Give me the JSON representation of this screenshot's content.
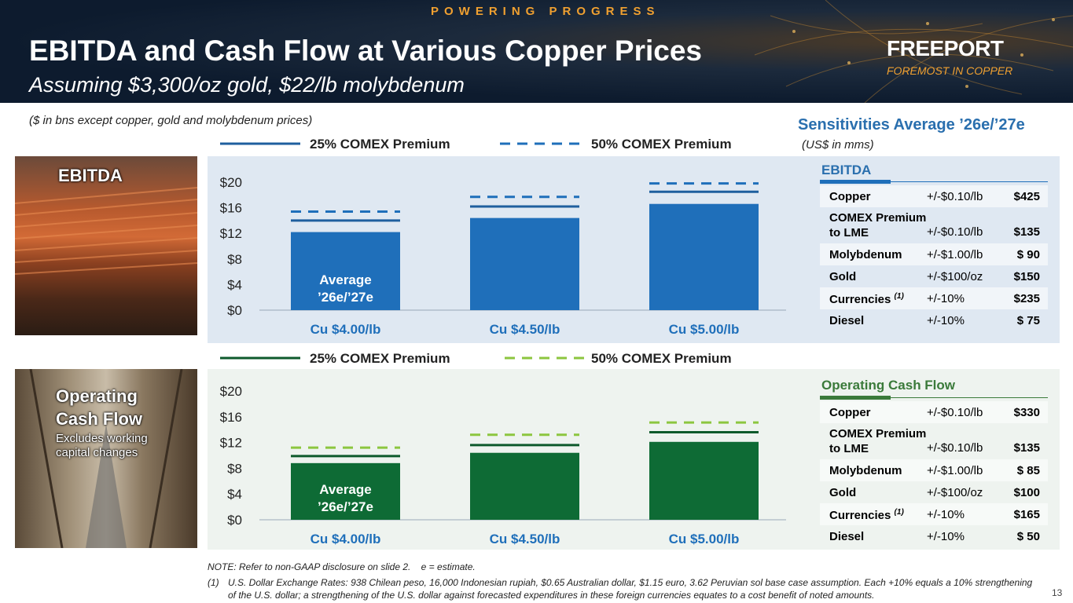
{
  "header": {
    "tagline": "POWERING PROGRESS",
    "title": "EBITDA and Cash Flow at Various Copper Prices",
    "subtitle": "Assuming $3,300/oz gold, $22/lb molybdenum",
    "logo": "FREEPORT",
    "logo_sub": "FOREMOST IN COPPER"
  },
  "units_note": "($ in bns except copper, gold and molybdenum prices)",
  "photos": {
    "ebitda_label": "EBITDA",
    "ocf_label_line1": "Operating",
    "ocf_label_line2": "Cash Flow",
    "ocf_note_line1": "Excludes working",
    "ocf_note_line2": "capital changes"
  },
  "chart_data": [
    {
      "type": "bar",
      "name": "EBITDA",
      "categories": [
        "Cu $4.00/lb",
        "Cu $4.50/lb",
        "Cu $5.00/lb"
      ],
      "series": [
        {
          "name": "Average ’26e/’27e",
          "values": [
            12.2,
            14.4,
            16.6
          ],
          "color": "#1f6fba"
        },
        {
          "name": "25% COMEX Premium",
          "values": [
            14.0,
            16.2,
            18.5
          ],
          "style": "solid",
          "color": "#1f5f9e"
        },
        {
          "name": "50% COMEX Premium",
          "values": [
            15.4,
            17.7,
            19.8
          ],
          "style": "dashed",
          "color": "#1f6fba"
        }
      ],
      "bar_label": "Average ’26e/’27e",
      "bar_label_line1": "Average",
      "bar_label_line2": "’26e/’27e",
      "yticks": [
        "$0",
        "$4",
        "$8",
        "$12",
        "$16",
        "$20"
      ],
      "ylim": [
        0,
        20
      ],
      "legend": {
        "solid": "25% COMEX Premium",
        "dashed": "50% COMEX Premium"
      },
      "legend_position": "top"
    },
    {
      "type": "bar",
      "name": "Operating Cash Flow",
      "categories": [
        "Cu $4.00/lb",
        "Cu $4.50/lb",
        "Cu $5.00/lb"
      ],
      "series": [
        {
          "name": "Average ’26e/’27e",
          "values": [
            8.8,
            10.4,
            12.1
          ],
          "color": "#0e6b35"
        },
        {
          "name": "25% COMEX Premium",
          "values": [
            9.9,
            11.6,
            13.6
          ],
          "style": "solid",
          "color": "#0e5a2c"
        },
        {
          "name": "50% COMEX Premium",
          "values": [
            11.2,
            13.2,
            15.1
          ],
          "style": "dashed",
          "color": "#8cc63f"
        }
      ],
      "bar_label": "Average ’26e/’27e",
      "bar_label_line1": "Average",
      "bar_label_line2": "’26e/’27e",
      "yticks": [
        "$0",
        "$4",
        "$8",
        "$12",
        "$16",
        "$20"
      ],
      "ylim": [
        0,
        20
      ],
      "legend": {
        "solid": "25% COMEX Premium",
        "dashed": "50% COMEX Premium"
      },
      "legend_position": "top"
    }
  ],
  "sensitivities": {
    "title": "Sensitivities Average ’26e/’27e",
    "units": "(US$ in mms)",
    "ebitda": {
      "heading": "EBITDA",
      "rows": [
        {
          "item": "Copper",
          "change": "+/-$0.10/lb",
          "value": "$425"
        },
        {
          "item_line1": "COMEX Premium",
          "item_line2": "to LME",
          "change": "+/-$0.10/lb",
          "value": "$135"
        },
        {
          "item": "Molybdenum",
          "change": "+/-$1.00/lb",
          "value": "$ 90"
        },
        {
          "item": "Gold",
          "change": "+/-$100/oz",
          "value": "$150"
        },
        {
          "item": "Currencies",
          "sup": "(1)",
          "change": "+/-10%",
          "value": "$235"
        },
        {
          "item": "Diesel",
          "change": "+/-10%",
          "value": "$ 75"
        }
      ]
    },
    "ocf": {
      "heading": "Operating Cash Flow",
      "rows": [
        {
          "item": "Copper",
          "change": "+/-$0.10/lb",
          "value": "$330"
        },
        {
          "item_line1": "COMEX Premium",
          "item_line2": "to LME",
          "change": "+/-$0.10/lb",
          "value": "$135"
        },
        {
          "item": "Molybdenum",
          "change": "+/-$1.00/lb",
          "value": "$ 85"
        },
        {
          "item": "Gold",
          "change": "+/-$100/oz",
          "value": "$100"
        },
        {
          "item": "Currencies",
          "sup": "(1)",
          "change": "+/-10%",
          "value": "$165"
        },
        {
          "item": "Diesel",
          "change": "+/-10%",
          "value": "$ 50"
        }
      ]
    }
  },
  "footer": {
    "note": "NOTE: Refer to non-GAAP disclosure on slide 2.    e = estimate.",
    "footnote_num": "(1)",
    "footnote_text": "U.S. Dollar Exchange Rates: 938 Chilean peso, 16,000 Indonesian rupiah, $0.65 Australian dollar, $1.15 euro, 3.62 Peruvian sol base case assumption. Each +10% equals a 10% strengthening of the U.S. dollar; a strengthening of the U.S. dollar against forecasted expenditures in these foreign currencies equates to a cost benefit of noted amounts.",
    "page": "13"
  },
  "colors": {
    "blue_accent": "#2a6fae",
    "green_accent": "#3a7a3a",
    "orange_accent": "#f0a030"
  }
}
